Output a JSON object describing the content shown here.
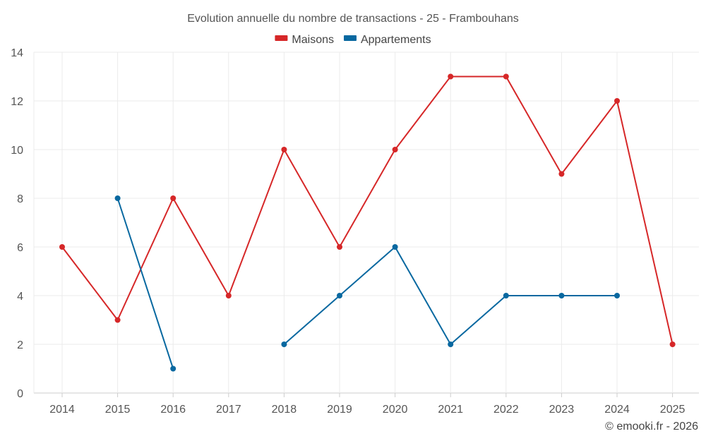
{
  "chart_data": {
    "type": "line",
    "title": "Evolution annuelle du nombre de transactions - 25 - Frambouhans",
    "categories": [
      "2014",
      "2015",
      "2016",
      "2017",
      "2018",
      "2019",
      "2020",
      "2021",
      "2022",
      "2023",
      "2024",
      "2025"
    ],
    "ylim": [
      0,
      14
    ],
    "yticks": [
      0,
      2,
      4,
      6,
      8,
      10,
      12,
      14
    ],
    "grid": true,
    "legend_position": "top-center",
    "series": [
      {
        "name": "Maisons",
        "color": "#d62728",
        "values": [
          6,
          3,
          8,
          4,
          10,
          6,
          10,
          13,
          13,
          9,
          12,
          2
        ]
      },
      {
        "name": "Appartements",
        "color": "#0868a0",
        "values": [
          null,
          8,
          1,
          null,
          2,
          4,
          6,
          2,
          4,
          4,
          4,
          null
        ]
      }
    ]
  },
  "credit": "© emooki.fr - 2026"
}
